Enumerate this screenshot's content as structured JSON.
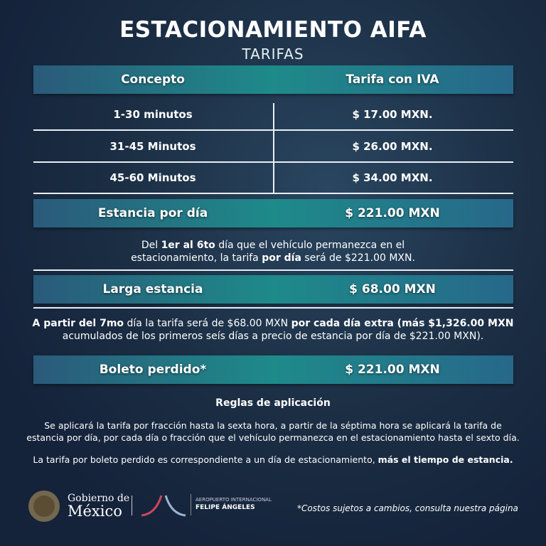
{
  "title": "ESTACIONAMIENTO AIFA",
  "subtitle": "TARIFAS",
  "table": {
    "header": {
      "concepto": "Concepto",
      "tarifa": "Tarifa con IVA"
    },
    "rows": [
      {
        "concepto": "1-30 minutos",
        "tarifa": "$ 17.00 MXN."
      },
      {
        "concepto": "31-45 Minutos",
        "tarifa": "$ 26.00 MXN."
      },
      {
        "concepto": "45-60 Minutos",
        "tarifa": "$ 34.00 MXN."
      }
    ]
  },
  "estancia": {
    "label": "Estancia por día",
    "price": "$ 221.00 MXN",
    "note": [
      "Del ",
      "1er al 6to",
      " día que el vehículo permanezca en el",
      "estacionamiento, la tarifa ",
      "por día",
      " será de $221.00 MXN."
    ]
  },
  "larga": {
    "label": "Larga estancia",
    "price": "$ 68.00 MXN",
    "note": [
      "A partir del 7mo",
      " día la tarifa será de $68.00 MXN ",
      "por cada día extra (más $1,326.00 MXN",
      "acumulados de los primeros seís días a precio de estancia por día de $221.00 MXN)."
    ]
  },
  "boleto": {
    "label": "Boleto perdido*",
    "price": "$ 221.00 MXN"
  },
  "reglas": {
    "title": "Reglas de aplicación",
    "p1a": "Se aplicará la tarifa por fracción hasta la sexta hora, a partir de la séptima hora se aplicará la tarifa de",
    "p1b": "estancia por día, por cada día o fracción que el vehículo permanezca en el estacionamiento hasta el sexto día.",
    "p2": "La tarifa por boleto perdido es correspondiente a un día de estacionamiento, ",
    "p2b": "más el tiempo de estancia."
  },
  "footer": {
    "gob_line1": "Gobierno de",
    "gob_line2": "México",
    "aifa_line1": "AEROPUERTO INTERNACIONAL",
    "aifa_line2": "FELIPE ÁNGELES",
    "disclaimer": "*Costos sujetos a cambios, consulta nuestra página"
  },
  "colors": {
    "band_start": "#2a5a7a",
    "band_mid": "#1e8a8a",
    "background": "#1b2e44"
  }
}
